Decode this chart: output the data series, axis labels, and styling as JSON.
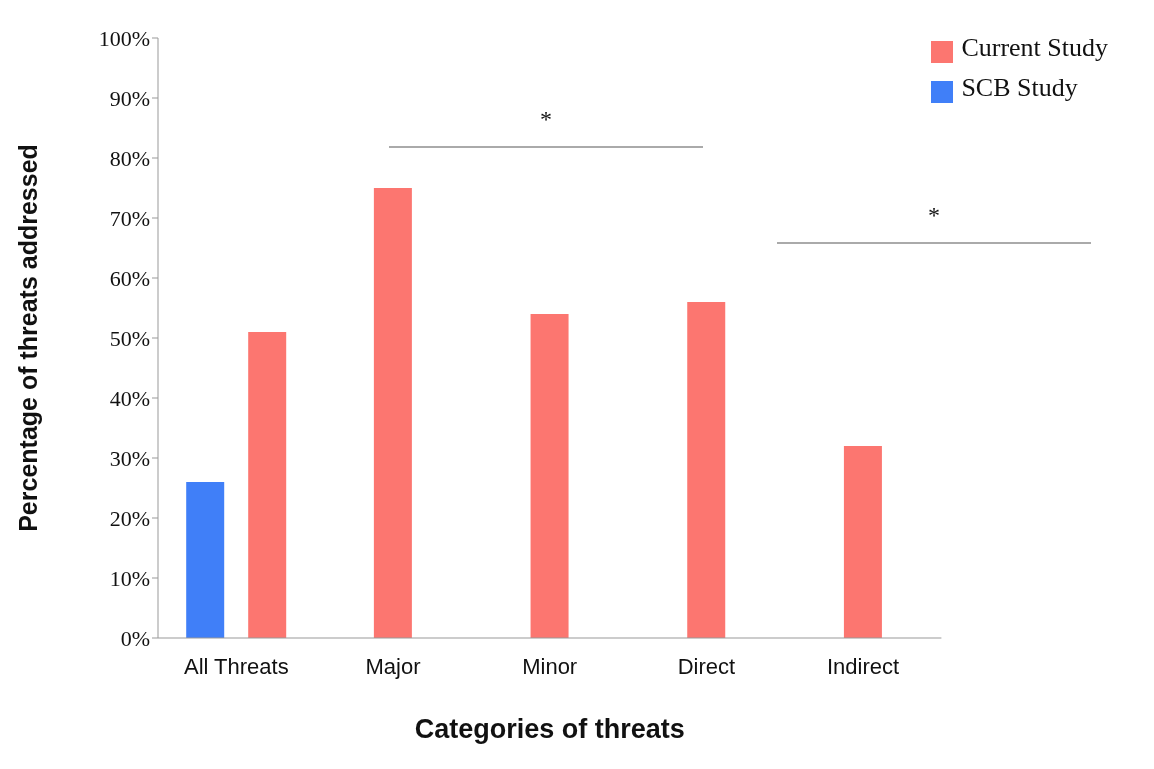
{
  "chart_data": {
    "type": "bar",
    "xlabel": "Categories of threats",
    "ylabel": "Percentage of threats addressed",
    "categories": [
      "All Threats",
      "Major",
      "Minor",
      "Direct",
      "Indirect"
    ],
    "series": [
      {
        "name": "SCB Study",
        "color": "#407ff8",
        "values": [
          26,
          null,
          null,
          null,
          null
        ]
      },
      {
        "name": "Current Study",
        "color": "#fc7670",
        "values": [
          51,
          75,
          54,
          56,
          32
        ]
      }
    ],
    "ylim": [
      0,
      100
    ],
    "yticks": [
      {
        "value": 0,
        "label": "0%"
      },
      {
        "value": 10,
        "label": "10%"
      },
      {
        "value": 20,
        "label": "20%"
      },
      {
        "value": 30,
        "label": "30%"
      },
      {
        "value": 40,
        "label": "40%"
      },
      {
        "value": 50,
        "label": "50%"
      },
      {
        "value": 60,
        "label": "60%"
      },
      {
        "value": 70,
        "label": "70%"
      },
      {
        "value": 80,
        "label": "80%"
      },
      {
        "value": 90,
        "label": "90%"
      },
      {
        "value": 100,
        "label": "100%"
      }
    ],
    "annotations": [
      "*",
      "*"
    ],
    "grid": false,
    "legend": "top right"
  }
}
